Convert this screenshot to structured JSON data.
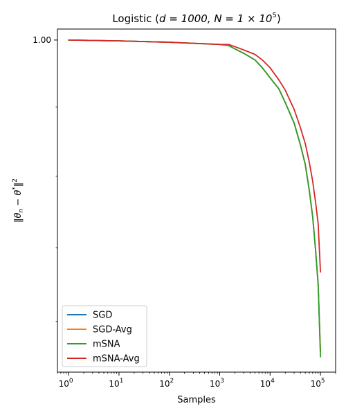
{
  "chart_data": {
    "type": "line",
    "title_main": "Logistic (",
    "title_math": "d = 1000, N = 1 × 10",
    "title_sup": "5",
    "title_end": ")",
    "xlabel": "Samples",
    "ylabel_main": "‖θ",
    "ylabel_sub": "n",
    "ylabel_mid": " − θ",
    "ylabel_sup1": "*",
    "ylabel_end": "‖",
    "ylabel_sup2": "2",
    "xscale": "log",
    "yscale": "log",
    "xlim": [
      0.6,
      200000
    ],
    "ylim": [
      0.86,
      1.005
    ],
    "xticks": [
      {
        "value": 1,
        "base": "10",
        "exp": "0"
      },
      {
        "value": 10,
        "base": "10",
        "exp": "1"
      },
      {
        "value": 100,
        "base": "10",
        "exp": "2"
      },
      {
        "value": 1000,
        "base": "10",
        "exp": "3"
      },
      {
        "value": 10000,
        "base": "10",
        "exp": "4"
      },
      {
        "value": 100000,
        "base": "10",
        "exp": "5"
      }
    ],
    "yticks": [
      {
        "value": 1.0,
        "label": "1.00"
      }
    ],
    "yminor": [
      0.97,
      0.94,
      0.91,
      0.88
    ],
    "legend_position": "lower-left",
    "grid": false,
    "series": [
      {
        "name": "SGD",
        "color": "#1f77b4",
        "x": [
          1,
          10,
          100,
          1000,
          1500,
          2000,
          3000,
          5000,
          7000,
          10000,
          15000,
          20000,
          30000,
          40000,
          50000,
          60000,
          70000,
          80000,
          90000,
          100000
        ],
        "y": [
          1.0,
          0.9996,
          0.999,
          0.998,
          0.9975,
          0.996,
          0.994,
          0.991,
          0.9875,
          0.983,
          0.978,
          0.972,
          0.963,
          0.9535,
          0.945,
          0.934,
          0.923,
          0.909,
          0.895,
          0.868
        ]
      },
      {
        "name": "SGD-Avg",
        "color": "#ff7f0e",
        "x": [
          1,
          10,
          100,
          1000,
          1500,
          2000,
          3000,
          5000,
          7000,
          10000,
          15000,
          20000,
          30000,
          40000,
          50000,
          60000,
          70000,
          80000,
          90000,
          100000
        ],
        "y": [
          1.0,
          0.9996,
          0.999,
          0.998,
          0.9975,
          0.996,
          0.994,
          0.991,
          0.9875,
          0.983,
          0.978,
          0.972,
          0.963,
          0.9535,
          0.945,
          0.934,
          0.923,
          0.909,
          0.895,
          0.868
        ]
      },
      {
        "name": "mSNA",
        "color": "#2ca02c",
        "x": [
          1,
          10,
          100,
          1000,
          1500,
          2000,
          3000,
          5000,
          7000,
          10000,
          15000,
          20000,
          30000,
          40000,
          50000,
          60000,
          70000,
          80000,
          90000,
          100000
        ],
        "y": [
          1.0,
          0.9996,
          0.999,
          0.998,
          0.9975,
          0.996,
          0.994,
          0.991,
          0.9875,
          0.983,
          0.978,
          0.972,
          0.963,
          0.9535,
          0.945,
          0.934,
          0.923,
          0.909,
          0.895,
          0.866
        ]
      },
      {
        "name": "mSNA-Avg",
        "color": "#d62728",
        "x": [
          1,
          10,
          100,
          1000,
          1500,
          2000,
          3000,
          5000,
          7000,
          10000,
          15000,
          20000,
          30000,
          40000,
          50000,
          60000,
          70000,
          80000,
          90000,
          100000
        ],
        "y": [
          1.0,
          0.9996,
          0.999,
          0.998,
          0.998,
          0.997,
          0.9955,
          0.9935,
          0.991,
          0.9875,
          0.982,
          0.9775,
          0.969,
          0.961,
          0.954,
          0.946,
          0.938,
          0.929,
          0.92,
          0.9
        ]
      }
    ]
  }
}
